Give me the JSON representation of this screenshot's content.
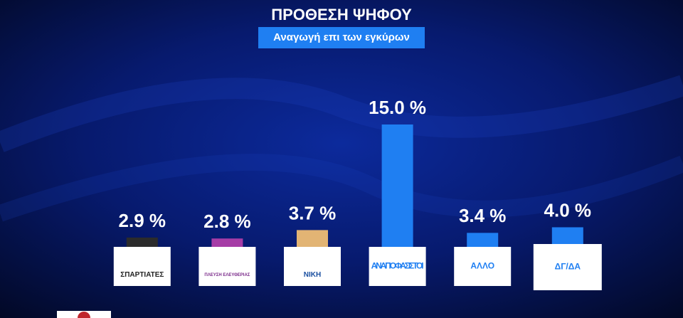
{
  "chart_data": {
    "type": "bar",
    "title": "ΠΡΟΘΕΣΗ ΨΗΦΟΥ",
    "subtitle": "Αναγωγή επι των εγκύρων",
    "categories": [
      "ΣΠΑΡΤΙΑΤΕΣ",
      "ΠΛΕΥΣΗ ΕΛΕΥΘΕΡΙΑΣ",
      "ΝΙΚΗ",
      "ΑΝΑΠΟΦΑΣΙΣΤΟΙ",
      "ΑΛΛΟ",
      "ΔΓ/ΔΑ"
    ],
    "values": [
      2.9,
      2.8,
      3.7,
      15.0,
      3.4,
      4.0
    ],
    "value_labels": [
      "2.9 %",
      "2.8 %",
      "3.7 %",
      "15.0 %",
      "3.4 %",
      "4.0 %"
    ],
    "colors": [
      "#2b2b2b",
      "#a63ca6",
      "#e2b474",
      "#1f7ff2",
      "#1f7ff2",
      "#1f7ff2"
    ],
    "ylim": [
      0,
      15
    ]
  }
}
